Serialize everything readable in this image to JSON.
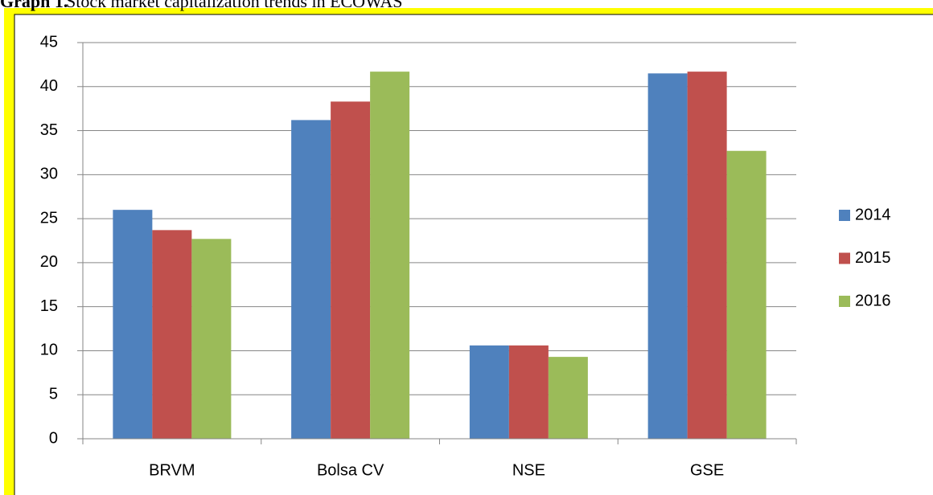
{
  "chart_data": {
    "type": "bar",
    "title_label": "Graph 1.",
    "title": "Stock market capitalization trends in ECOWAS",
    "categories": [
      "BRVM",
      "Bolsa CV",
      "NSE",
      "GSE"
    ],
    "series": [
      {
        "name": "2014",
        "color": "#4f81bd",
        "values": [
          26.0,
          36.2,
          10.6,
          41.5
        ]
      },
      {
        "name": "2015",
        "color": "#c0504d",
        "values": [
          23.7,
          38.3,
          10.6,
          41.7
        ]
      },
      {
        "name": "2016",
        "color": "#9bbb59",
        "values": [
          22.7,
          41.7,
          9.3,
          32.7
        ]
      }
    ],
    "ylim": [
      0,
      45
    ],
    "yticks": [
      0,
      5,
      10,
      15,
      20,
      25,
      30,
      35,
      40,
      45
    ],
    "grid": true,
    "legend": "right"
  }
}
